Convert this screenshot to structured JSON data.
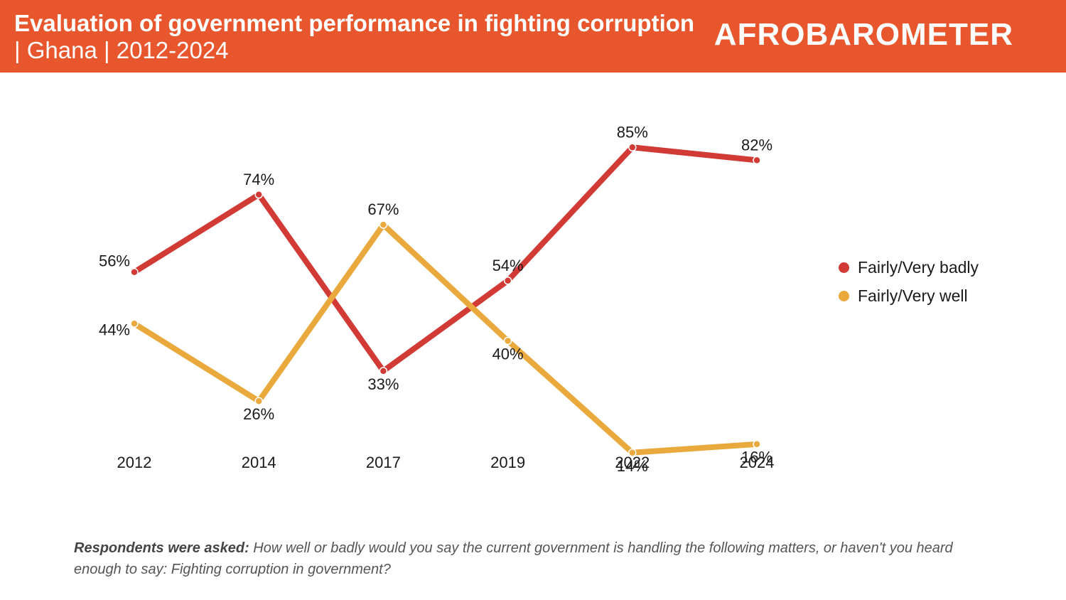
{
  "header": {
    "title_bold": "Evaluation of government performance in fighting corruption",
    "title_rest": " | Ghana | 2012-2024",
    "logo": "AFROBAROMETER"
  },
  "footnote": {
    "lead": "Respondents were asked:",
    "text": " How well or badly would you say the current government is handling the following matters, or haven't you heard enough to say: Fighting corruption in government?"
  },
  "chart_data": {
    "type": "line",
    "title": "Evaluation of government performance in fighting corruption | Ghana | 2012-2024",
    "categories": [
      "2012",
      "2014",
      "2017",
      "2019",
      "2022",
      "2024"
    ],
    "series": [
      {
        "name": "Fairly/Very badly",
        "color": "#d13a35",
        "values": [
          56,
          74,
          33,
          54,
          85,
          82
        ],
        "labels": [
          "56%",
          "74%",
          "33%",
          "54%",
          "85%",
          "82%"
        ]
      },
      {
        "name": "Fairly/Very well",
        "color": "#eaa93d",
        "values": [
          44,
          26,
          67,
          40,
          14,
          16
        ],
        "labels": [
          "44%",
          "26%",
          "67%",
          "40%",
          "14%",
          "16%"
        ]
      }
    ],
    "ylim": [
      0,
      100
    ],
    "grid": false,
    "legend": "right"
  }
}
